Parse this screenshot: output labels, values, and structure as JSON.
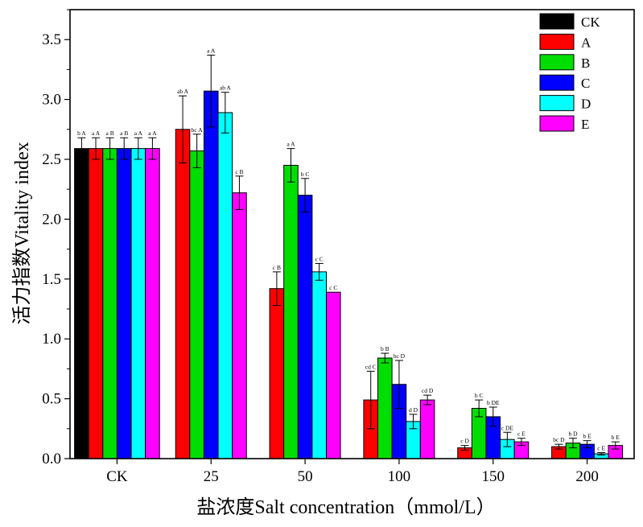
{
  "chart_data": {
    "type": "bar",
    "xlabel": "盐浓度Salt concentration（mmol/L）",
    "ylabel": "活力指数Vitality index",
    "ylim": [
      0,
      3.75
    ],
    "yticks": [
      0.0,
      0.5,
      1.0,
      1.5,
      2.0,
      2.5,
      3.0,
      3.5
    ],
    "ytick_labels": [
      "0.0",
      "0.5",
      "1.0",
      "1.5",
      "2.0",
      "2.5",
      "3.0",
      "3.5"
    ],
    "categories": [
      "CK",
      "25",
      "50",
      "100",
      "150",
      "200"
    ],
    "grid": false,
    "legend_position": "top-right",
    "series": [
      {
        "name": "CK",
        "color": "#000000",
        "values": [
          2.59,
          null,
          null,
          null,
          null,
          null
        ],
        "errors": [
          0.09,
          null,
          null,
          null,
          null,
          null
        ],
        "labels": [
          "b A",
          null,
          null,
          null,
          null,
          null
        ]
      },
      {
        "name": "A",
        "color": "#ff0000",
        "values": [
          2.59,
          2.75,
          1.42,
          0.49,
          0.09,
          0.1
        ],
        "errors": [
          0.09,
          0.28,
          0.14,
          0.24,
          0.02,
          0.02
        ],
        "labels": [
          "a A",
          "ab A",
          "c B",
          "cd C",
          "c D",
          "bc D"
        ]
      },
      {
        "name": "B",
        "color": "#00dd00",
        "values": [
          2.59,
          2.57,
          2.45,
          0.84,
          0.42,
          0.13
        ],
        "errors": [
          0.09,
          0.14,
          0.14,
          0.04,
          0.07,
          0.04
        ],
        "labels": [
          "a B",
          "bc A",
          "a A",
          "b B",
          "b C",
          "b D"
        ]
      },
      {
        "name": "C",
        "color": "#0000ff",
        "values": [
          2.59,
          3.07,
          2.2,
          0.62,
          0.35,
          0.12
        ],
        "errors": [
          0.09,
          0.3,
          0.14,
          0.2,
          0.08,
          0.03
        ],
        "labels": [
          "a B",
          "a A",
          "b C",
          "bc D",
          "b DE",
          "b E"
        ]
      },
      {
        "name": "D",
        "color": "#00ffff",
        "values": [
          2.59,
          2.89,
          1.56,
          0.31,
          0.16,
          0.04
        ],
        "errors": [
          0.09,
          0.17,
          0.07,
          0.06,
          0.06,
          0.01
        ],
        "labels": [
          "a A",
          "ab A",
          "c C",
          "d D",
          "c DE",
          "c E"
        ]
      },
      {
        "name": "E",
        "color": "#ff00ff",
        "values": [
          2.59,
          2.22,
          1.39,
          0.49,
          0.14,
          0.11
        ],
        "errors": [
          0.09,
          0.14,
          null,
          0.04,
          0.03,
          0.03
        ],
        "labels": [
          "a A",
          "c B",
          "c C",
          "cd D",
          "c E",
          "b E"
        ]
      }
    ]
  }
}
